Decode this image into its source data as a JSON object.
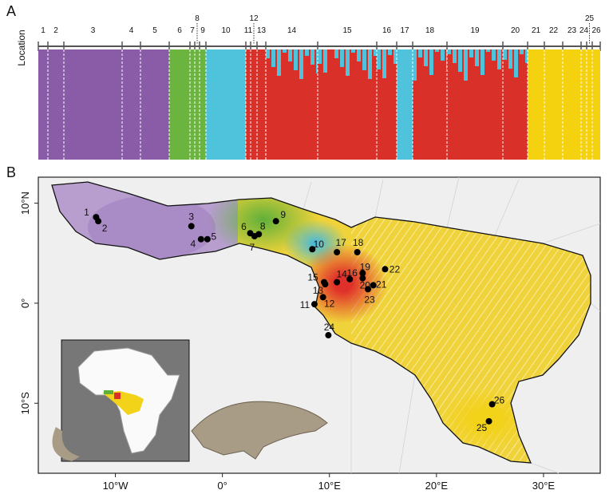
{
  "panel_a": {
    "label": "A",
    "axis_label": "Location",
    "locations": [
      "1",
      "2",
      "3",
      "4",
      "5",
      "6",
      "7",
      "8",
      "9",
      "10",
      "11",
      "12",
      "13",
      "14",
      "15",
      "16",
      "17",
      "18",
      "19",
      "20",
      "21",
      "22",
      "23",
      "24",
      "25",
      "26"
    ]
  },
  "panel_b": {
    "label": "B",
    "xlim": [
      -17.2,
      35.3
    ],
    "ylim": [
      -17,
      12.6
    ],
    "xticks": [
      {
        "value": -10,
        "label": "10°W"
      },
      {
        "value": 0,
        "label": "0°"
      },
      {
        "value": 10,
        "label": "10°E"
      },
      {
        "value": 20,
        "label": "20°E"
      },
      {
        "value": 30,
        "label": "30°E"
      }
    ],
    "yticks": [
      {
        "value": 10,
        "label": "10°N"
      },
      {
        "value": 0,
        "label": "0°"
      },
      {
        "value": -10,
        "label": "10°S"
      }
    ],
    "samples": [
      {
        "label": "1",
        "lon": -11.8,
        "lat": 8.6
      },
      {
        "label": "2",
        "lon": -11.6,
        "lat": 8.2
      },
      {
        "label": "3",
        "lon": -2.9,
        "lat": 7.7
      },
      {
        "label": "4",
        "lon": -2.0,
        "lat": 6.4
      },
      {
        "label": "5",
        "lon": -1.4,
        "lat": 6.4
      },
      {
        "label": "6",
        "lon": 2.6,
        "lat": 7.0
      },
      {
        "label": "7",
        "lon": 3.0,
        "lat": 6.7
      },
      {
        "label": "8",
        "lon": 3.4,
        "lat": 6.9
      },
      {
        "label": "9",
        "lon": 5.0,
        "lat": 8.2
      },
      {
        "label": "10",
        "lon": 8.4,
        "lat": 5.4
      },
      {
        "label": "11",
        "lon": 8.6,
        "lat": -0.1
      },
      {
        "label": "12",
        "lon": 9.4,
        "lat": 0.6
      },
      {
        "label": "13",
        "lon": 9.6,
        "lat": 1.9
      },
      {
        "label": "14",
        "lon": 10.7,
        "lat": 2.1
      },
      {
        "label": "15",
        "lon": 9.5,
        "lat": 2.1
      },
      {
        "label": "16",
        "lon": 11.9,
        "lat": 2.4
      },
      {
        "label": "17",
        "lon": 10.7,
        "lat": 5.1
      },
      {
        "label": "18",
        "lon": 12.6,
        "lat": 5.1
      },
      {
        "label": "19",
        "lon": 13.1,
        "lat": 3.0
      },
      {
        "label": "20",
        "lon": 13.1,
        "lat": 2.5
      },
      {
        "label": "21",
        "lon": 14.1,
        "lat": 1.8
      },
      {
        "label": "22",
        "lon": 15.2,
        "lat": 3.4
      },
      {
        "label": "23",
        "lon": 13.6,
        "lat": 1.4
      },
      {
        "label": "24",
        "lon": 9.9,
        "lat": -3.2
      },
      {
        "label": "25",
        "lon": 24.9,
        "lat": -11.8
      },
      {
        "label": "26",
        "lon": 25.2,
        "lat": -10.1
      }
    ]
  }
}
